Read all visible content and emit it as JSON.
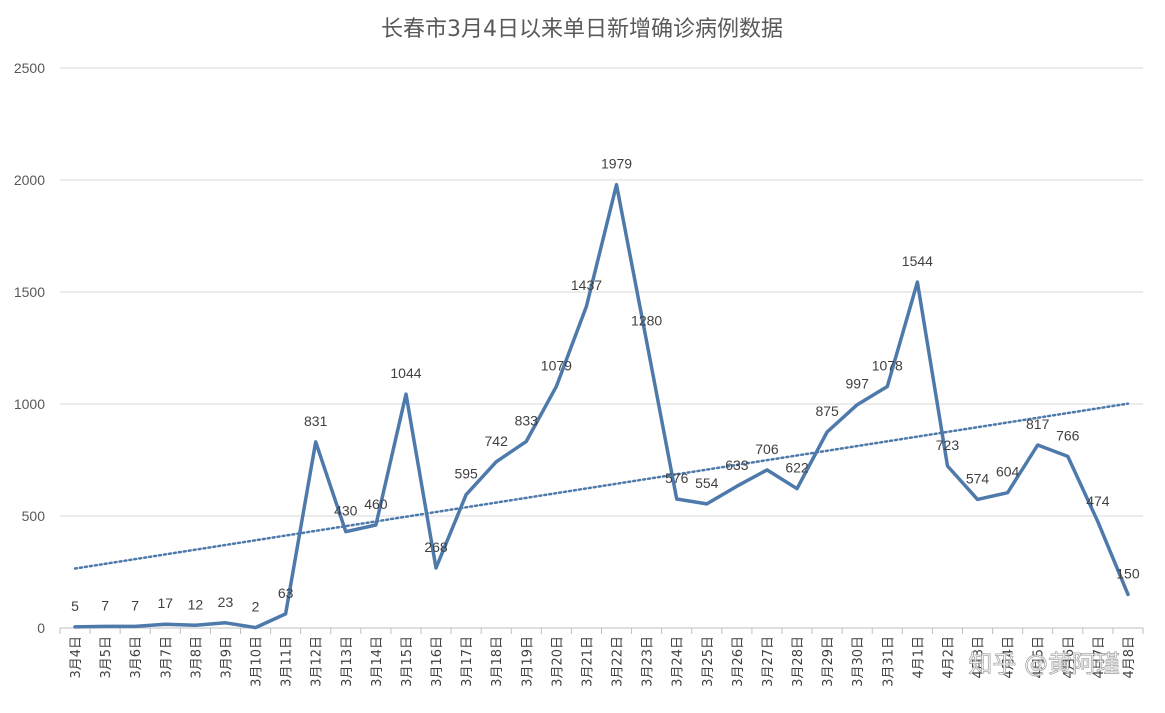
{
  "chart_data": {
    "type": "line",
    "title": "长春市3月4日以来单日新增确诊病例数据",
    "xlabel": "",
    "ylabel": "",
    "ylim": [
      0,
      2500
    ],
    "yticks": [
      0,
      500,
      1000,
      1500,
      2000,
      2500
    ],
    "grid": true,
    "legend": "none",
    "categories": [
      "3月4日",
      "3月5日",
      "3月6日",
      "3月7日",
      "3月8日",
      "3月9日",
      "3月10日",
      "3月11日",
      "3月12日",
      "3月13日",
      "3月14日",
      "3月15日",
      "3月16日",
      "3月17日",
      "3月18日",
      "3月19日",
      "3月20日",
      "3月21日",
      "3月22日",
      "3月23日",
      "3月24日",
      "3月25日",
      "3月26日",
      "3月27日",
      "3月28日",
      "3月29日",
      "3月30日",
      "3月31日",
      "4月1日",
      "4月2日",
      "4月3日",
      "4月4日",
      "4月5日",
      "4月6日",
      "4月7日",
      "4月8日"
    ],
    "series": [
      {
        "values": [
          5,
          7,
          7,
          17,
          12,
          23,
          2,
          63,
          831,
          430,
          460,
          1044,
          268,
          595,
          742,
          833,
          1079,
          1437,
          1979,
          1280,
          576,
          554,
          633,
          706,
          622,
          875,
          997,
          1078,
          1544,
          723,
          574,
          604,
          817,
          766,
          474,
          150
        ],
        "color": "#4e7aab"
      }
    ],
    "trendline": {
      "type": "linear",
      "style": "dotted",
      "color": "#4e7aab"
    }
  },
  "watermark": {
    "text": "知乎 @黄阿瑾"
  }
}
